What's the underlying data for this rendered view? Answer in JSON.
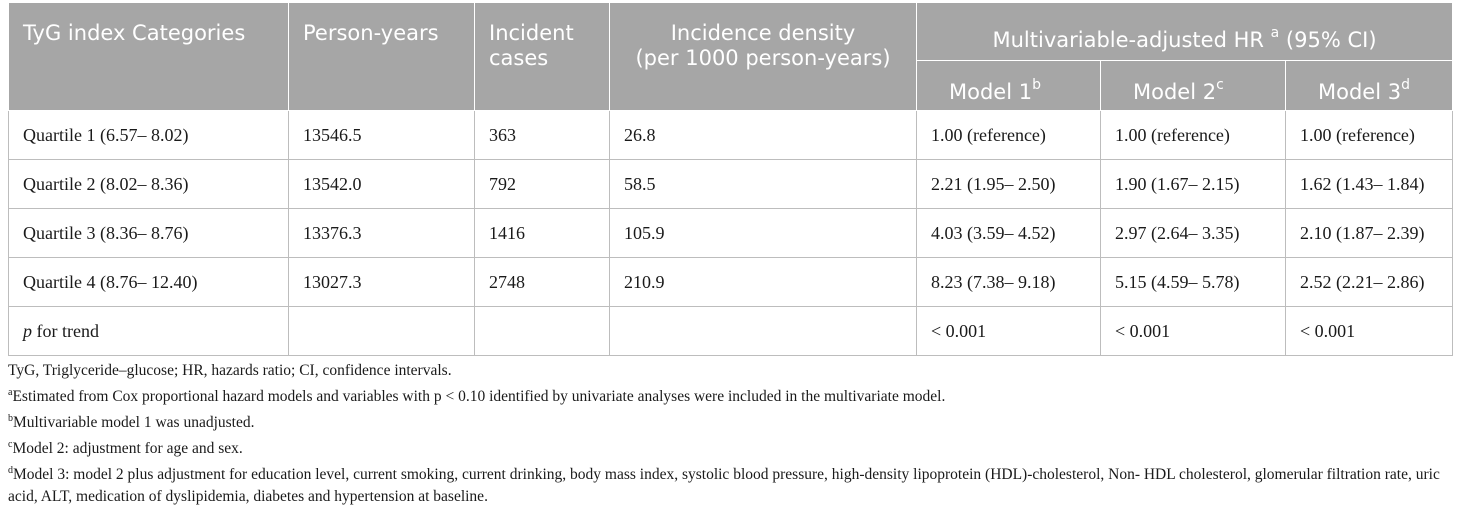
{
  "header": {
    "col_category": "TyG index Categories",
    "col_person_years": "Person-years",
    "col_incident_cases": "Incident\ncases",
    "col_density_line1": "Incidence density",
    "col_density_line2": "(per 1000 person-years)",
    "col_hr_group": "Multivariable-adjusted HR",
    "col_hr_group_sup": "a",
    "col_hr_group_tail": "(95% CI)",
    "model1": "Model 1",
    "model1_sup": "b",
    "model2": "Model 2",
    "model2_sup": "c",
    "model3": "Model 3",
    "model3_sup": "d"
  },
  "rows": [
    {
      "category": "Quartile 1 (6.57– 8.02)",
      "person_years": "13546.5",
      "cases": "363",
      "density": "26.8",
      "m1": "1.00 (reference)",
      "m2": "1.00 (reference)",
      "m3": "1.00 (reference)"
    },
    {
      "category": "Quartile 2 (8.02– 8.36)",
      "person_years": "13542.0",
      "cases": "792",
      "density": "58.5",
      "m1": "2.21 (1.95– 2.50)",
      "m2": "1.90 (1.67– 2.15)",
      "m3": "1.62 (1.43– 1.84)"
    },
    {
      "category": "Quartile 3 (8.36– 8.76)",
      "person_years": "13376.3",
      "cases": "1416",
      "density": "105.9",
      "m1": "4.03 (3.59– 4.52)",
      "m2": "2.97 (2.64– 3.35)",
      "m3": "2.10 (1.87– 2.39)"
    },
    {
      "category": "Quartile 4 (8.76– 12.40)",
      "person_years": "13027.3",
      "cases": "2748",
      "density": "210.9",
      "m1": "8.23 (7.38– 9.18)",
      "m2": "5.15 (4.59– 5.78)",
      "m3": "2.52 (2.21– 2.86)"
    }
  ],
  "trend_row": {
    "p_label": "p",
    "label_rest": " for trend",
    "m1": "< 0.001",
    "m2": "< 0.001",
    "m3": "< 0.001"
  },
  "notes": {
    "abbrev": "TyG, Triglyceride–glucose; HR, hazards ratio; CI, confidence intervals.",
    "a_mark": "a",
    "a_text": "Estimated from Cox proportional hazard models and variables with p < 0.10 identified by univariate analyses were included in the multivariate model.",
    "b_mark": "b",
    "b_text": "Multivariable model 1 was unadjusted.",
    "c_mark": "c",
    "c_text": "Model 2: adjustment for age and sex.",
    "d_mark": "d",
    "d_text": "Model 3: model 2 plus adjustment for education level, current smoking, current drinking, body mass index, systolic blood pressure, high-density lipoprotein (HDL)-cholesterol, Non- HDL cholesterol, glomerular filtration rate, uric acid, ALT, medication of dyslipidemia, diabetes and hypertension at baseline."
  }
}
